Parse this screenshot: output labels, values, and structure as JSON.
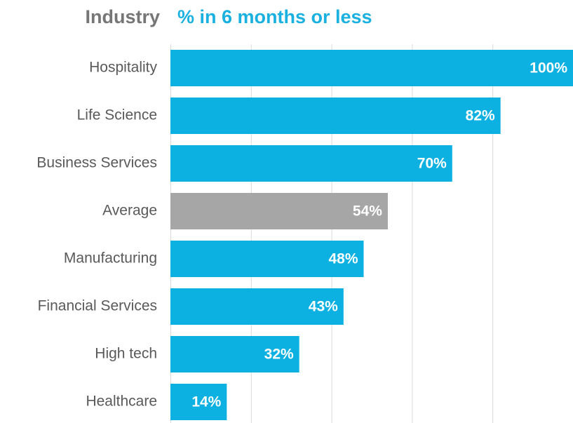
{
  "chart_data": {
    "type": "bar",
    "orientation": "horizontal",
    "column_header": "Industry",
    "title": "% in 6 months or less",
    "categories": [
      "Hospitality",
      "Life Science",
      "Business Services",
      "Average",
      "Manufacturing",
      "Financial Services",
      "High tech",
      "Healthcare"
    ],
    "values": [
      100,
      82,
      70,
      54,
      48,
      43,
      32,
      14
    ],
    "value_labels": [
      "100%",
      "82%",
      "70%",
      "54%",
      "48%",
      "43%",
      "32%",
      "14%"
    ],
    "colors": [
      "#0cb1e2",
      "#0cb1e2",
      "#0cb1e2",
      "#a6a6a6",
      "#0cb1e2",
      "#0cb1e2",
      "#0cb1e2",
      "#0cb1e2"
    ],
    "xlim": [
      0,
      100
    ],
    "xgrid": [
      0,
      20,
      40,
      60,
      80
    ]
  }
}
